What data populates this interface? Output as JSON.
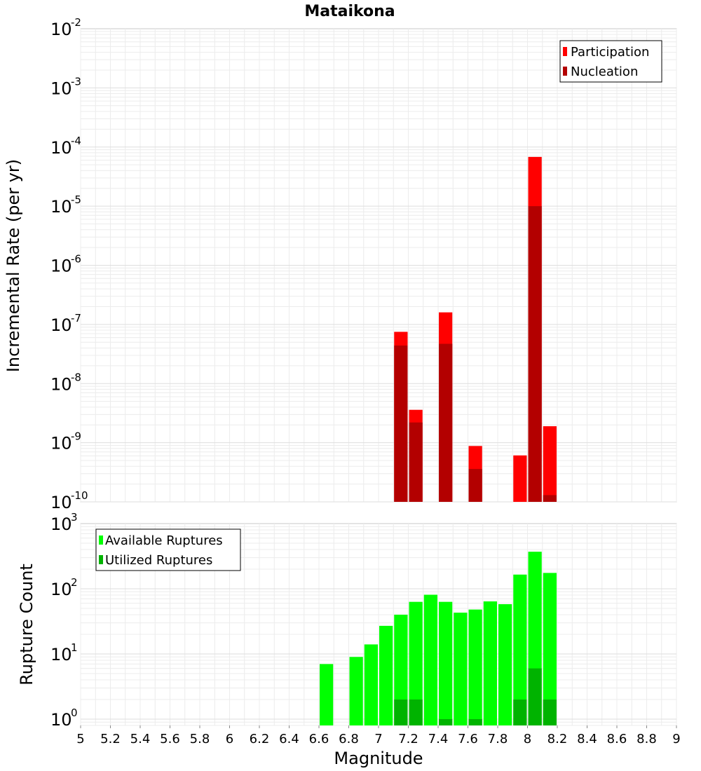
{
  "chart_data": [
    {
      "type": "bar",
      "title": "Mataikona",
      "xlabel": "",
      "ylabel": "Incremental Rate (per yr)",
      "yscale": "log",
      "xlim": [
        5,
        9
      ],
      "ylim": [
        1e-10,
        0.01
      ],
      "y_ticks": [
        {
          "base": "10",
          "exp": "-10",
          "value": 1e-10
        },
        {
          "base": "10",
          "exp": "-9",
          "value": 1e-09
        },
        {
          "base": "10",
          "exp": "-8",
          "value": 1e-08
        },
        {
          "base": "10",
          "exp": "-7",
          "value": 1e-07
        },
        {
          "base": "10",
          "exp": "-6",
          "value": 1e-06
        },
        {
          "base": "10",
          "exp": "-5",
          "value": 1e-05
        },
        {
          "base": "10",
          "exp": "-4",
          "value": 0.0001
        },
        {
          "base": "10",
          "exp": "-3",
          "value": 0.001
        },
        {
          "base": "10",
          "exp": "-2",
          "value": 0.01
        }
      ],
      "grid": true,
      "legend_position": "top-right",
      "series": [
        {
          "name": "Participation",
          "color": "#ff0000",
          "points": [
            {
              "x": 7.15,
              "y": 7.5e-08
            },
            {
              "x": 7.25,
              "y": 3.6e-09
            },
            {
              "x": 7.45,
              "y": 1.6e-07
            },
            {
              "x": 7.65,
              "y": 8.8e-10
            },
            {
              "x": 7.95,
              "y": 6.1e-10
            },
            {
              "x": 8.05,
              "y": 6.8e-05
            },
            {
              "x": 8.15,
              "y": 1.9e-09
            }
          ]
        },
        {
          "name": "Nucleation",
          "color": "#b30000",
          "points": [
            {
              "x": 7.15,
              "y": 4.4e-08
            },
            {
              "x": 7.25,
              "y": 2.2e-09
            },
            {
              "x": 7.45,
              "y": 4.7e-08
            },
            {
              "x": 7.65,
              "y": 3.6e-10
            },
            {
              "x": 8.05,
              "y": 1e-05
            },
            {
              "x": 8.15,
              "y": 1.3e-10
            }
          ]
        }
      ]
    },
    {
      "type": "bar",
      "title": "",
      "xlabel": "Magnitude",
      "ylabel": "Rupture Count",
      "yscale": "log",
      "xlim": [
        5,
        9
      ],
      "ylim": [
        0.8,
        1000
      ],
      "y_ticks": [
        {
          "base": "10",
          "exp": "0",
          "value": 1
        },
        {
          "base": "10",
          "exp": "1",
          "value": 10
        },
        {
          "base": "10",
          "exp": "2",
          "value": 100
        },
        {
          "base": "10",
          "exp": "3",
          "value": 1000
        }
      ],
      "x_ticks": [
        "5",
        "5.2",
        "5.4",
        "5.6",
        "5.8",
        "6",
        "6.2",
        "6.4",
        "6.6",
        "6.8",
        "7",
        "7.2",
        "7.4",
        "7.6",
        "7.8",
        "8",
        "8.2",
        "8.4",
        "8.6",
        "8.8",
        "9"
      ],
      "grid": true,
      "legend_position": "top-left",
      "series": [
        {
          "name": "Available Ruptures",
          "color": "#00ff00",
          "points": [
            {
              "x": 6.65,
              "y": 7
            },
            {
              "x": 6.85,
              "y": 9
            },
            {
              "x": 6.95,
              "y": 14
            },
            {
              "x": 7.05,
              "y": 27
            },
            {
              "x": 7.15,
              "y": 40
            },
            {
              "x": 7.25,
              "y": 63
            },
            {
              "x": 7.35,
              "y": 81
            },
            {
              "x": 7.45,
              "y": 63
            },
            {
              "x": 7.55,
              "y": 43
            },
            {
              "x": 7.65,
              "y": 48
            },
            {
              "x": 7.75,
              "y": 64
            },
            {
              "x": 7.85,
              "y": 58
            },
            {
              "x": 7.95,
              "y": 165
            },
            {
              "x": 8.05,
              "y": 370
            },
            {
              "x": 8.15,
              "y": 175
            }
          ]
        },
        {
          "name": "Utilized Ruptures",
          "color": "#00b300",
          "points": [
            {
              "x": 7.15,
              "y": 2
            },
            {
              "x": 7.25,
              "y": 2
            },
            {
              "x": 7.45,
              "y": 1
            },
            {
              "x": 7.65,
              "y": 1
            },
            {
              "x": 7.95,
              "y": 2
            },
            {
              "x": 8.05,
              "y": 6
            },
            {
              "x": 8.15,
              "y": 2
            }
          ]
        }
      ]
    }
  ]
}
